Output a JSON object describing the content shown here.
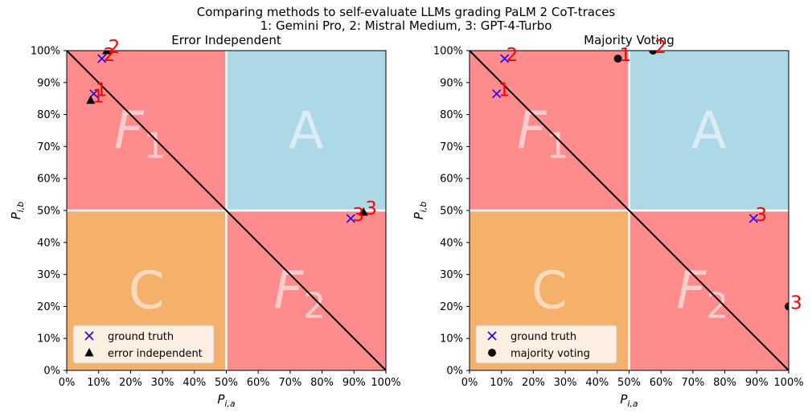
{
  "suptitle": {
    "line1": "Comparing methods to self-evaluate LLMs grading PaLM 2 CoT-traces",
    "line2": "1: Gemini Pro, 2: Mistral Medium, 3: GPT-4-Turbo"
  },
  "colors": {
    "A": "#add8e6",
    "F": "#ff8c8c",
    "C": "#f5b06b",
    "ground_truth_marker": "#1a00ff",
    "point_label": "#ff0000",
    "diagonal": "#000000",
    "region_label": "#ffffff"
  },
  "chart_data": [
    {
      "type": "scatter",
      "title": "Error Independent",
      "xlabel": "P_{i,a}",
      "ylabel": "P_{i,b}",
      "xlim": [
        0,
        100
      ],
      "ylim": [
        0,
        100
      ],
      "xticks": [
        "0%",
        "10%",
        "20%",
        "30%",
        "40%",
        "50%",
        "60%",
        "70%",
        "80%",
        "90%",
        "100%"
      ],
      "yticks": [
        "0%",
        "10%",
        "20%",
        "30%",
        "40%",
        "50%",
        "60%",
        "70%",
        "80%",
        "90%",
        "100%"
      ],
      "regions": [
        {
          "label": "F",
          "sub": "1",
          "x": [
            0,
            50
          ],
          "y": [
            50,
            100
          ],
          "color": "F"
        },
        {
          "label": "A",
          "sub": "",
          "x": [
            50,
            100
          ],
          "y": [
            50,
            100
          ],
          "color": "A"
        },
        {
          "label": "C",
          "sub": "",
          "x": [
            0,
            50
          ],
          "y": [
            0,
            50
          ],
          "color": "C"
        },
        {
          "label": "F",
          "sub": "2",
          "x": [
            50,
            100
          ],
          "y": [
            0,
            50
          ],
          "color": "F"
        }
      ],
      "legend": {
        "position": "lower-left",
        "entries": [
          "ground truth",
          "error independent"
        ]
      },
      "series": [
        {
          "name": "ground truth",
          "marker": "x",
          "points": [
            {
              "label": "1",
              "x": 8.5,
              "y": 86.5
            },
            {
              "label": "2",
              "x": 11,
              "y": 97.5
            },
            {
              "label": "3",
              "x": 89,
              "y": 47.5
            }
          ]
        },
        {
          "name": "error independent",
          "marker": "triangle",
          "points": [
            {
              "label": "1",
              "x": 7.5,
              "y": 84.5
            },
            {
              "label": "2",
              "x": 12.5,
              "y": 100
            },
            {
              "label": "3",
              "x": 93,
              "y": 49.5
            }
          ]
        }
      ]
    },
    {
      "type": "scatter",
      "title": "Majority Voting",
      "xlabel": "P_{i,a}",
      "ylabel": "P_{i,b}",
      "xlim": [
        0,
        100
      ],
      "ylim": [
        0,
        100
      ],
      "xticks": [
        "0%",
        "10%",
        "20%",
        "30%",
        "40%",
        "50%",
        "60%",
        "70%",
        "80%",
        "90%",
        "100%"
      ],
      "yticks": [
        "0%",
        "10%",
        "20%",
        "30%",
        "40%",
        "50%",
        "60%",
        "70%",
        "80%",
        "90%",
        "100%"
      ],
      "regions": [
        {
          "label": "F",
          "sub": "1",
          "x": [
            0,
            50
          ],
          "y": [
            50,
            100
          ],
          "color": "F"
        },
        {
          "label": "A",
          "sub": "",
          "x": [
            50,
            100
          ],
          "y": [
            50,
            100
          ],
          "color": "A"
        },
        {
          "label": "C",
          "sub": "",
          "x": [
            0,
            50
          ],
          "y": [
            0,
            50
          ],
          "color": "C"
        },
        {
          "label": "F",
          "sub": "2",
          "x": [
            50,
            100
          ],
          "y": [
            0,
            50
          ],
          "color": "F"
        }
      ],
      "legend": {
        "position": "lower-left",
        "entries": [
          "ground truth",
          "majority voting"
        ]
      },
      "series": [
        {
          "name": "ground truth",
          "marker": "x",
          "points": [
            {
              "label": "1",
              "x": 8.5,
              "y": 86.5
            },
            {
              "label": "2",
              "x": 11,
              "y": 97.5
            },
            {
              "label": "3",
              "x": 89,
              "y": 47.5
            }
          ]
        },
        {
          "name": "majority voting",
          "marker": "circle",
          "points": [
            {
              "label": "1",
              "x": 46.5,
              "y": 97.5
            },
            {
              "label": "2",
              "x": 57.5,
              "y": 100
            },
            {
              "label": "3",
              "x": 100,
              "y": 20
            }
          ]
        }
      ]
    }
  ]
}
